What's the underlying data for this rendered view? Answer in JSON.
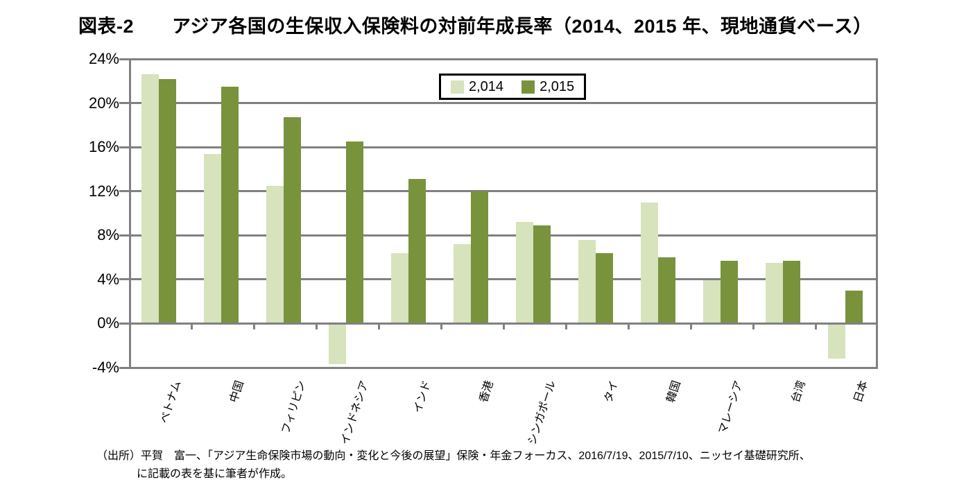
{
  "title": "図表-2　　アジア各国の生保収入保険料の対前年成長率（2014、2015 年、現地通貨ベース）",
  "source": {
    "line1": "（出所）平賀　富一、「アジア生命保険市場の動向・変化と今後の展望」保険・年金フォーカス、2016/7/19、2015/7/10、ニッセイ基礎研究所、",
    "line2": "に記載の表を基に筆者が作成。"
  },
  "colors": {
    "series_2014": "#d6e3bc",
    "series_2015": "#78933c",
    "gridline": "#808080",
    "legend_border": "#000000"
  },
  "chart_data": {
    "type": "bar",
    "title": "図表-2 アジア各国の生保収入保険料の対前年成長率（2014、2015 年、現地通貨ベース）",
    "categories": [
      "ベトナム",
      "中国",
      "フィリピン",
      "インドネシア",
      "インド",
      "香港",
      "シンガポール",
      "タイ",
      "韓国",
      "マレーシア",
      "台湾",
      "日本"
    ],
    "series": [
      {
        "name": "2,014",
        "color": "#d6e3bc",
        "values": [
          22.6,
          15.4,
          12.5,
          -3.6,
          6.4,
          7.2,
          9.2,
          7.6,
          11.0,
          3.9,
          5.5,
          -3.1
        ]
      },
      {
        "name": "2,015",
        "color": "#78933c",
        "values": [
          22.2,
          21.5,
          18.7,
          16.5,
          13.1,
          12.0,
          8.9,
          6.4,
          6.0,
          5.7,
          5.7,
          3.0
        ]
      }
    ],
    "xlabel": "",
    "ylabel": "",
    "ylim": [
      -4,
      24
    ],
    "grid": true,
    "legend_position": "top-center-inside",
    "y_ticks": [
      {
        "label": "24%",
        "value": 24
      },
      {
        "label": "20%",
        "value": 20
      },
      {
        "label": "16%",
        "value": 16
      },
      {
        "label": "12%",
        "value": 12
      },
      {
        "label": "8%",
        "value": 8
      },
      {
        "label": "4%",
        "value": 4
      },
      {
        "label": "0%",
        "value": 0
      },
      {
        "label": "-4%",
        "value": -4
      }
    ]
  }
}
